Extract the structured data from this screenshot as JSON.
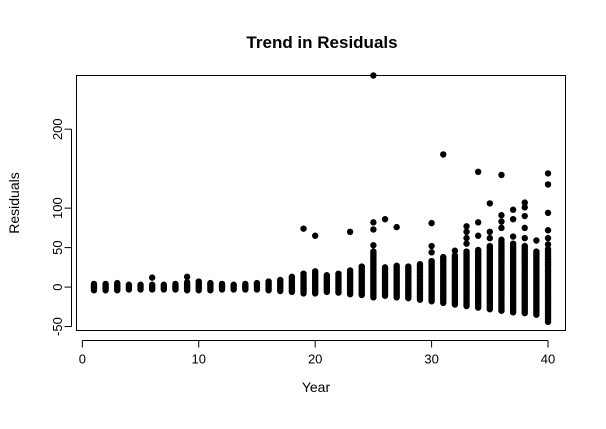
{
  "chart_data": {
    "type": "scatter",
    "title": "Trend in Residuals",
    "xlabel": "Year",
    "ylabel": "Residuals",
    "xlim": [
      -0.5,
      41.5
    ],
    "ylim": [
      -55,
      268
    ],
    "x_ticks": [
      0,
      10,
      20,
      30,
      40
    ],
    "y_ticks": [
      -50,
      0,
      50,
      100,
      200
    ],
    "y_tick_labels": [
      "-50",
      "0",
      "50",
      "100",
      "200"
    ],
    "marker": {
      "shape": "filled-circle",
      "color": "#000000"
    },
    "grid": false,
    "legend": "none",
    "columns": [
      {
        "x": 1,
        "min": -4,
        "max": 4,
        "extra": []
      },
      {
        "x": 2,
        "min": -4,
        "max": 4,
        "extra": []
      },
      {
        "x": 3,
        "min": -4,
        "max": 5,
        "extra": []
      },
      {
        "x": 4,
        "min": -3,
        "max": 3,
        "extra": []
      },
      {
        "x": 5,
        "min": -3,
        "max": 3,
        "extra": []
      },
      {
        "x": 6,
        "min": -3,
        "max": 3,
        "extra": [
          12
        ]
      },
      {
        "x": 7,
        "min": -3,
        "max": 3,
        "extra": []
      },
      {
        "x": 8,
        "min": -3,
        "max": 4,
        "extra": []
      },
      {
        "x": 9,
        "min": -4,
        "max": 6,
        "extra": [
          13
        ]
      },
      {
        "x": 10,
        "min": -4,
        "max": 7,
        "extra": []
      },
      {
        "x": 11,
        "min": -4,
        "max": 5,
        "extra": []
      },
      {
        "x": 12,
        "min": -3,
        "max": 4,
        "extra": []
      },
      {
        "x": 13,
        "min": -3,
        "max": 3,
        "extra": []
      },
      {
        "x": 14,
        "min": -3,
        "max": 4,
        "extra": []
      },
      {
        "x": 15,
        "min": -3,
        "max": 5,
        "extra": []
      },
      {
        "x": 16,
        "min": -4,
        "max": 7,
        "extra": []
      },
      {
        "x": 17,
        "min": -5,
        "max": 9,
        "extra": []
      },
      {
        "x": 18,
        "min": -6,
        "max": 13,
        "extra": []
      },
      {
        "x": 19,
        "min": -8,
        "max": 17,
        "extra": [
          74
        ]
      },
      {
        "x": 20,
        "min": -8,
        "max": 20,
        "extra": [
          65
        ]
      },
      {
        "x": 21,
        "min": -6,
        "max": 15,
        "extra": []
      },
      {
        "x": 22,
        "min": -7,
        "max": 17,
        "extra": []
      },
      {
        "x": 23,
        "min": -9,
        "max": 21,
        "extra": [
          70
        ]
      },
      {
        "x": 24,
        "min": -10,
        "max": 26,
        "extra": []
      },
      {
        "x": 25,
        "min": -13,
        "max": 45,
        "extra": [
          53,
          73,
          82,
          268
        ]
      },
      {
        "x": 26,
        "min": -11,
        "max": 25,
        "extra": [
          86
        ]
      },
      {
        "x": 27,
        "min": -13,
        "max": 27,
        "extra": [
          76
        ]
      },
      {
        "x": 28,
        "min": -14,
        "max": 26,
        "extra": []
      },
      {
        "x": 29,
        "min": -16,
        "max": 29,
        "extra": []
      },
      {
        "x": 30,
        "min": -18,
        "max": 33,
        "extra": [
          44,
          52,
          81
        ]
      },
      {
        "x": 31,
        "min": -20,
        "max": 38,
        "extra": [
          168
        ]
      },
      {
        "x": 32,
        "min": -22,
        "max": 40,
        "extra": [
          46
        ]
      },
      {
        "x": 33,
        "min": -24,
        "max": 45,
        "extra": [
          55,
          62,
          70,
          77
        ]
      },
      {
        "x": 34,
        "min": -26,
        "max": 47,
        "extra": [
          65,
          82,
          146
        ]
      },
      {
        "x": 35,
        "min": -28,
        "max": 52,
        "extra": [
          62,
          70,
          106
        ]
      },
      {
        "x": 36,
        "min": -30,
        "max": 60,
        "extra": [
          75,
          83,
          91,
          142
        ]
      },
      {
        "x": 37,
        "min": -32,
        "max": 55,
        "extra": [
          64,
          86,
          98
        ]
      },
      {
        "x": 38,
        "min": -33,
        "max": 52,
        "extra": [
          62,
          75,
          90,
          101,
          107
        ]
      },
      {
        "x": 39,
        "min": -35,
        "max": 45,
        "extra": [
          59
        ]
      },
      {
        "x": 40,
        "min": -44,
        "max": 48,
        "extra": [
          54,
          62,
          72,
          94,
          130,
          144
        ]
      }
    ]
  }
}
